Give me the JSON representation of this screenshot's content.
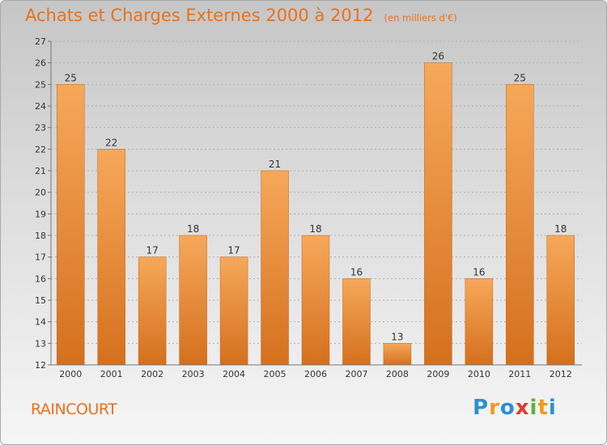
{
  "chart_data": {
    "type": "bar",
    "title": "Achats et Charges Externes 2000 à 2012",
    "subtitle": "(en milliers d'€)",
    "categories": [
      "2000",
      "2001",
      "2002",
      "2003",
      "2004",
      "2005",
      "2006",
      "2007",
      "2008",
      "2009",
      "2010",
      "2011",
      "2012"
    ],
    "values": [
      25,
      22,
      17,
      18,
      17,
      21,
      18,
      16,
      13,
      26,
      16,
      25,
      18
    ],
    "ylim": [
      12,
      27
    ],
    "yticks": [
      12,
      13,
      14,
      15,
      16,
      17,
      18,
      19,
      20,
      21,
      22,
      23,
      24,
      25,
      26,
      27
    ],
    "xlabel": "",
    "ylabel": "",
    "grid": true,
    "bar_color_light": "#f7a85a",
    "bar_color_dark": "#d4701e"
  },
  "footer": {
    "commune": "RAINCOURT",
    "brand_letters": [
      "P",
      "r",
      "o",
      "x",
      "i",
      "t",
      "i"
    ],
    "brand_colors": [
      "#2e8fd3",
      "#f09a1c",
      "#2e8fd3",
      "#e33b2e",
      "#5eb13b",
      "#f09a1c",
      "#2e8fd3"
    ]
  }
}
